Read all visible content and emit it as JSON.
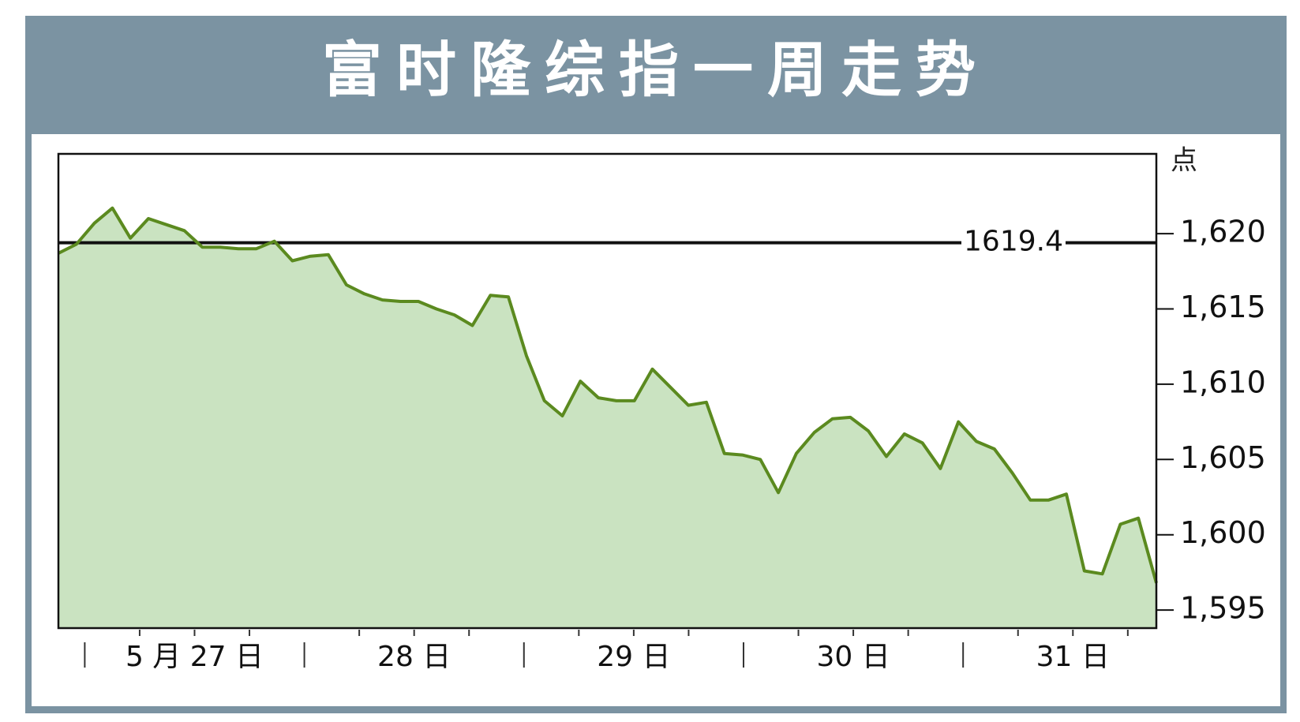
{
  "chart_data": {
    "type": "line",
    "title": "富时隆综指一周走势",
    "y_unit": "点",
    "x_labels": [
      "5 月 27 日",
      "28 日",
      "29 日",
      "30 日",
      "31 日"
    ],
    "values": [
      1618.7,
      1619.3,
      1620.7,
      1621.7,
      1619.7,
      1621.0,
      1620.6,
      1620.2,
      1619.1,
      1619.1,
      1619.0,
      1619.0,
      1619.5,
      1618.2,
      1618.5,
      1618.6,
      1616.6,
      1616.0,
      1615.6,
      1615.5,
      1615.5,
      1615.0,
      1614.6,
      1613.9,
      1615.9,
      1615.8,
      1611.9,
      1608.9,
      1607.9,
      1610.2,
      1609.1,
      1608.9,
      1608.9,
      1611.0,
      1609.8,
      1608.6,
      1608.8,
      1605.4,
      1605.3,
      1605.0,
      1602.8,
      1605.4,
      1606.8,
      1607.7,
      1607.8,
      1606.9,
      1605.2,
      1606.7,
      1606.1,
      1604.4,
      1607.5,
      1606.2,
      1605.7,
      1604.1,
      1602.3,
      1602.3,
      1602.7,
      1597.6,
      1597.4,
      1600.7,
      1601.1,
      1596.8
    ],
    "color": "#5b8a1f",
    "fill": "#cae3c1",
    "reference_line": {
      "value": 1619.4,
      "label": "1619.4"
    },
    "ylim": [
      1593.8,
      1625.3
    ],
    "yticks": [
      {
        "value": 1595,
        "label": "1,595"
      },
      {
        "value": 1600,
        "label": "1,600"
      },
      {
        "value": 1605,
        "label": "1,605"
      },
      {
        "value": 1610,
        "label": "1,610"
      },
      {
        "value": 1615,
        "label": "1,615"
      },
      {
        "value": 1620,
        "label": "1,620"
      }
    ]
  }
}
